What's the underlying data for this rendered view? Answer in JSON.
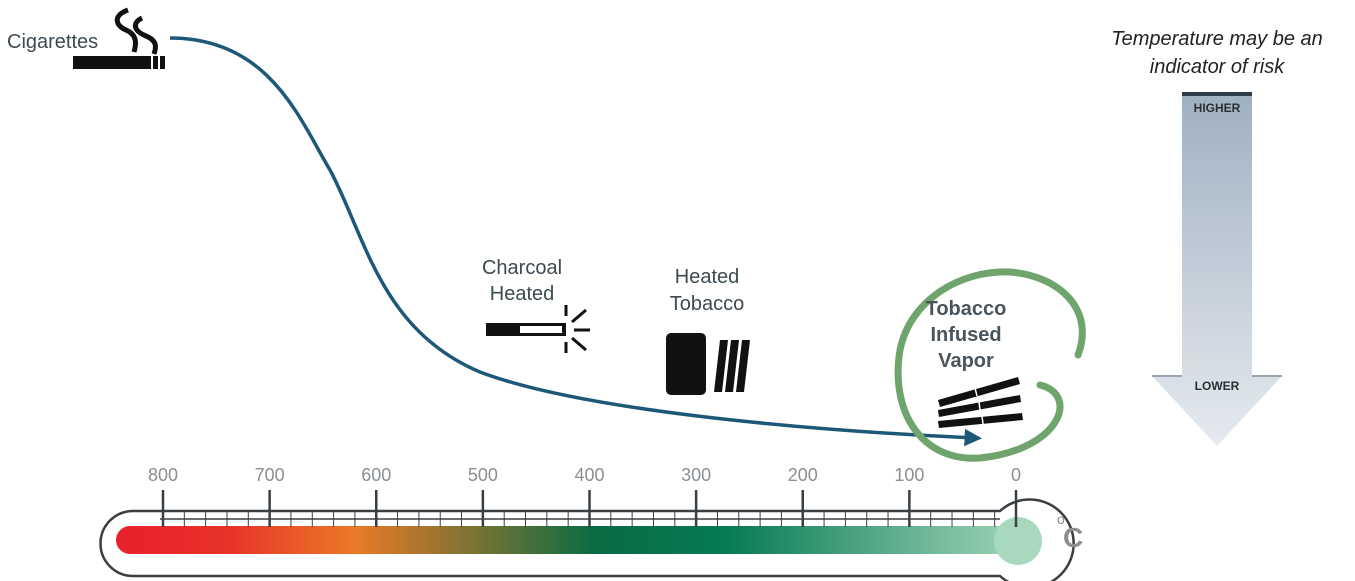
{
  "labels": {
    "cigarettes": "Cigarettes",
    "charcoal_line1": "Charcoal",
    "charcoal_line2": "Heated",
    "heated_line1": "Heated",
    "heated_line2": "Tobacco",
    "vapor_line1": "Tobacco",
    "vapor_line2": "Infused",
    "vapor_line3": "Vapor"
  },
  "risk": {
    "caption_line1": "Temperature may be an",
    "caption_line2": "indicator of risk",
    "higher": "HIGHER",
    "lower": "LOWER"
  },
  "thermometer": {
    "ticks": [
      "800",
      "700",
      "600",
      "500",
      "400",
      "300",
      "200",
      "100",
      "0"
    ],
    "unit_degree": "o",
    "unit_letter": "C"
  },
  "colors": {
    "curve": "#1d5878",
    "vapor_circle": "#6fa56c",
    "gradient_stops": [
      "#e8202a",
      "#ea7a25",
      "#0a6b43",
      "#057a53",
      "#a8d8bd"
    ]
  },
  "icons": {
    "cigarette": "cigarette-smoke-icon",
    "charcoal": "charcoal-heated-stick-icon",
    "heated": "heated-tobacco-device-icon",
    "vapor": "vapor-sticks-icon"
  }
}
